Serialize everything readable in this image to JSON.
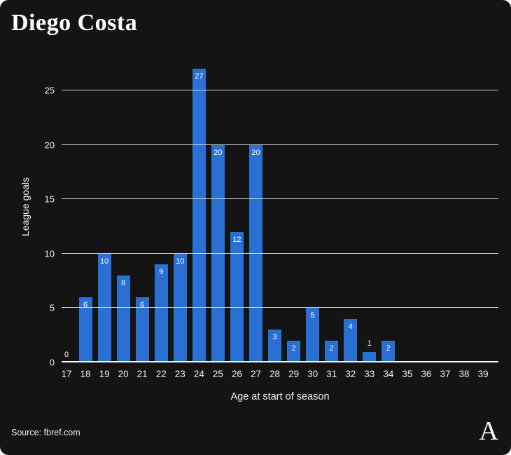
{
  "title": "Diego Costa",
  "source": "Source: fbref.com",
  "logo_glyph": "A",
  "colors": {
    "background": "#141414",
    "bar": "#2a6fd4",
    "gridline": "#f0f0f0",
    "text": "#ffffff"
  },
  "chart_data": {
    "type": "bar",
    "title": "Diego Costa",
    "xlabel": "Age at start of season",
    "ylabel": "League goals",
    "categories": [
      17,
      18,
      19,
      20,
      21,
      22,
      23,
      24,
      25,
      26,
      27,
      28,
      29,
      30,
      31,
      32,
      33,
      34,
      35,
      36,
      37,
      38,
      39
    ],
    "values": [
      0,
      6,
      10,
      8,
      6,
      9,
      10,
      27,
      20,
      12,
      20,
      3,
      2,
      5,
      2,
      4,
      1,
      2,
      null,
      null,
      null,
      null,
      null
    ],
    "yticks": [
      0,
      5,
      10,
      15,
      20,
      25
    ],
    "ylim": [
      0,
      28.5
    ],
    "grid": true,
    "legend": false,
    "value_labels": true,
    "bar_color": "#2a6fd4"
  }
}
